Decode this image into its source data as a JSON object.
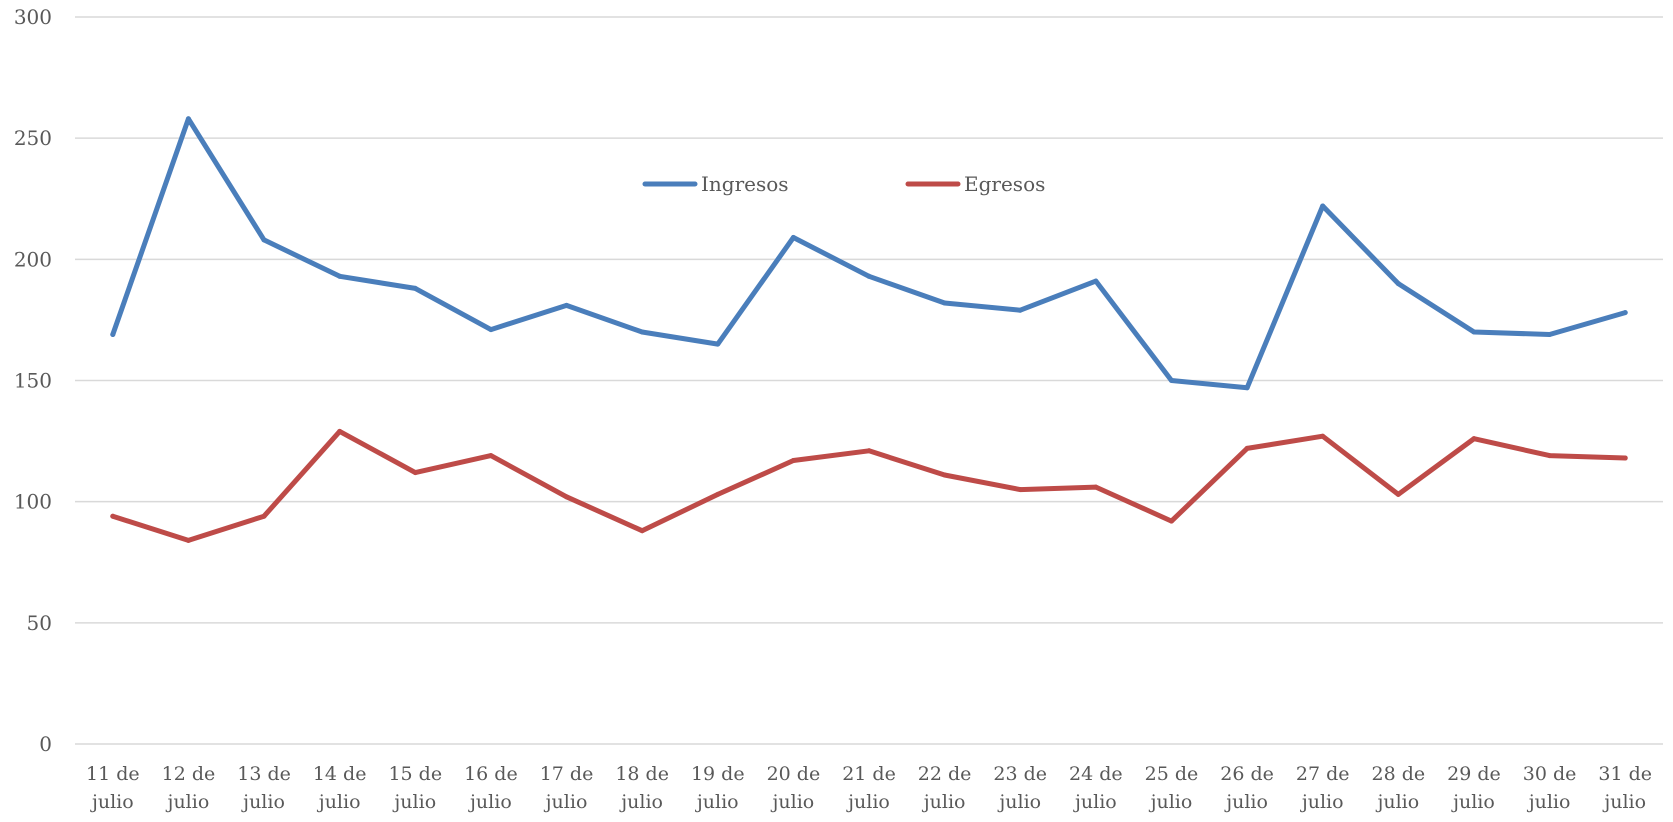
{
  "chart_data": {
    "type": "line",
    "title": "",
    "xlabel": "",
    "ylabel": "",
    "ylim": [
      0,
      300
    ],
    "yticks": [
      0,
      50,
      100,
      150,
      200,
      250,
      300
    ],
    "grid": true,
    "legend_position": "top-center",
    "categories": [
      [
        "11 de",
        "julio"
      ],
      [
        "12 de",
        "julio"
      ],
      [
        "13 de",
        "julio"
      ],
      [
        "14 de",
        "julio"
      ],
      [
        "15 de",
        "julio"
      ],
      [
        "16 de",
        "julio"
      ],
      [
        "17 de",
        "julio"
      ],
      [
        "18 de",
        "julio"
      ],
      [
        "19 de",
        "julio"
      ],
      [
        "20 de",
        "julio"
      ],
      [
        "21 de",
        "julio"
      ],
      [
        "22 de",
        "julio"
      ],
      [
        "23 de",
        "julio"
      ],
      [
        "24 de",
        "julio"
      ],
      [
        "25 de",
        "julio"
      ],
      [
        "26 de",
        "julio"
      ],
      [
        "27 de",
        "julio"
      ],
      [
        "28 de",
        "julio"
      ],
      [
        "29 de",
        "julio"
      ],
      [
        "30 de",
        "julio"
      ],
      [
        "31 de",
        "julio"
      ]
    ],
    "series": [
      {
        "name": "Ingresos",
        "color": "#4a7ebb",
        "values": [
          169,
          258,
          208,
          193,
          188,
          171,
          181,
          170,
          165,
          209,
          193,
          182,
          179,
          191,
          150,
          147,
          222,
          190,
          170,
          169,
          178
        ]
      },
      {
        "name": "Egresos",
        "color": "#be4b48",
        "values": [
          94,
          84,
          94,
          129,
          112,
          119,
          102,
          88,
          103,
          117,
          121,
          111,
          105,
          106,
          92,
          122,
          127,
          103,
          126,
          119,
          118
        ]
      }
    ]
  }
}
